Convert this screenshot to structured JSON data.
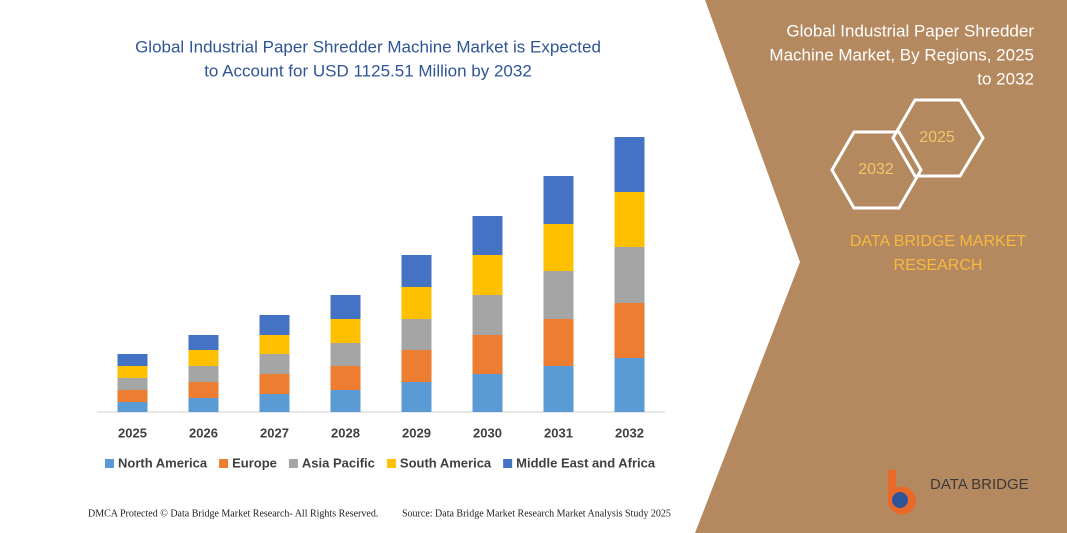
{
  "chart_data": {
    "type": "stacked-bar",
    "title": [
      "Global Industrial Paper Shredder Machine Market is Expected",
      "to Account for USD 1125.51 Million by 2032"
    ],
    "categories": [
      "2025",
      "2026",
      "2027",
      "2028",
      "2029",
      "2030",
      "2031",
      "2032"
    ],
    "series": [
      {
        "name": "North America",
        "color": "#5b9bd5",
        "values": [
          10,
          14,
          18,
          22,
          30,
          38,
          46,
          54
        ]
      },
      {
        "name": "Europe",
        "color": "#ed7d31",
        "values": [
          12,
          16,
          20,
          24,
          32,
          39,
          47,
          55
        ]
      },
      {
        "name": "Asia Pacific",
        "color": "#a5a5a5",
        "values": [
          12,
          16,
          20,
          23,
          31,
          40,
          48,
          56
        ]
      },
      {
        "name": "South America",
        "color": "#ffc000",
        "values": [
          12,
          16,
          19,
          24,
          32,
          40,
          47,
          55
        ]
      },
      {
        "name": "Middle East and Africa",
        "color": "#4472c4",
        "values": [
          12,
          15,
          20,
          24,
          32,
          39,
          48,
          55
        ]
      }
    ],
    "ylim": [
      0,
      300
    ]
  },
  "sidebar": {
    "title": [
      "Global Industrial Paper Shredder",
      "Machine Market, By Regions, 2025",
      "to 2032"
    ],
    "badges": [
      "2025",
      "2032"
    ],
    "brand": [
      "DATA BRIDGE MARKET",
      "RESEARCH"
    ]
  },
  "logo": "DATA BRIDGE",
  "footer": {
    "left": "DMCA Protected © Data Bridge Market Research-  All Rights Reserved.",
    "right": "Source: Data Bridge Market Research  Market Analysis Study 2025"
  }
}
